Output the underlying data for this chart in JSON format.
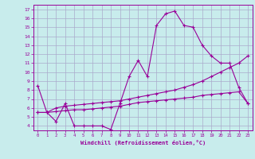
{
  "xlabel": "Windchill (Refroidissement éolien,°C)",
  "background_color": "#c8ecec",
  "line_color": "#990099",
  "grid_color": "#aaaacc",
  "x_data": [
    0,
    1,
    2,
    3,
    4,
    5,
    6,
    7,
    8,
    9,
    10,
    11,
    12,
    13,
    14,
    15,
    16,
    17,
    18,
    19,
    20,
    21,
    22,
    23
  ],
  "main_curve": [
    8.5,
    5.5,
    4.5,
    6.5,
    4.0,
    4.0,
    4.0,
    4.0,
    3.6,
    6.5,
    9.5,
    11.3,
    9.5,
    15.2,
    16.5,
    16.8,
    15.2,
    15.0,
    13.0,
    11.8,
    11.0,
    11.0,
    8.3,
    6.5
  ],
  "line2": [
    5.5,
    5.5,
    6.0,
    6.2,
    6.3,
    6.4,
    6.5,
    6.6,
    6.7,
    6.8,
    7.0,
    7.2,
    7.4,
    7.6,
    7.8,
    8.0,
    8.3,
    8.6,
    9.0,
    9.5,
    10.0,
    10.5,
    11.0,
    11.8
  ],
  "line3": [
    5.5,
    5.5,
    5.6,
    5.7,
    5.8,
    5.8,
    5.9,
    6.0,
    6.1,
    6.2,
    6.4,
    6.6,
    6.7,
    6.8,
    6.9,
    7.0,
    7.1,
    7.2,
    7.4,
    7.5,
    7.6,
    7.7,
    7.8,
    6.5
  ],
  "ylim": [
    3.5,
    17.5
  ],
  "xlim": [
    -0.5,
    23.5
  ],
  "yticks": [
    4,
    5,
    6,
    7,
    8,
    9,
    10,
    11,
    12,
    13,
    14,
    15,
    16,
    17
  ],
  "xticks": [
    0,
    1,
    2,
    3,
    4,
    5,
    6,
    7,
    8,
    9,
    10,
    11,
    12,
    13,
    14,
    15,
    16,
    17,
    18,
    19,
    20,
    21,
    22,
    23
  ]
}
